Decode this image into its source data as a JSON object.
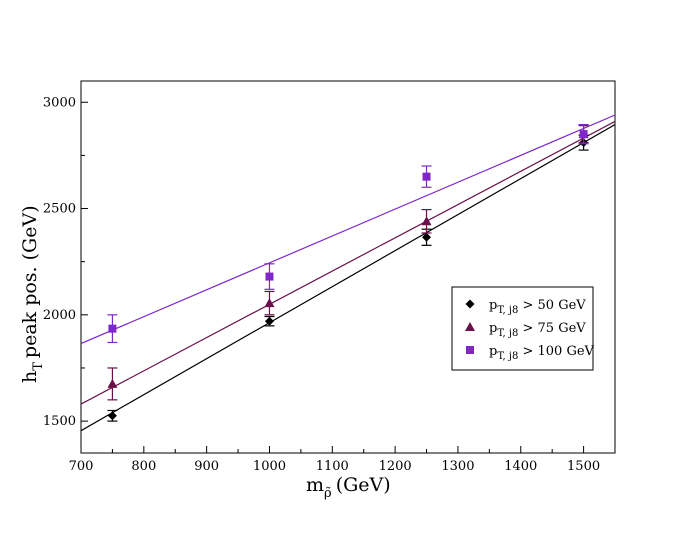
{
  "chart_data": {
    "type": "scatter",
    "title": "",
    "xlabel": "m",
    "xlabel_sub": "ρ̃",
    "xlabel_unit": "(GeV)",
    "ylabel": "h",
    "ylabel_sub": "T",
    "ylabel_rest": "peak pos. (GeV)",
    "xlim": [
      700,
      1550
    ],
    "ylim": [
      1350,
      3100
    ],
    "x_ticks": [
      700,
      800,
      900,
      1000,
      1100,
      1200,
      1300,
      1400,
      1500
    ],
    "y_ticks": [
      1500,
      2000,
      2500,
      3000
    ],
    "legend_position": "center-right",
    "series": [
      {
        "name": "p_T, j8 > 50 GeV",
        "label_main": "p",
        "label_sub": "T, j8",
        "label_rest": " > 50 GeV",
        "color": "#000000",
        "marker": "diamond",
        "x": [
          750,
          1000,
          1250,
          1500
        ],
        "y": [
          1525,
          1970,
          2365,
          2810
        ],
        "err": [
          25,
          22,
          38,
          35
        ],
        "fit": {
          "x": [
            700,
            1550
          ],
          "y": [
            1455,
            2895
          ]
        }
      },
      {
        "name": "p_T, j8 > 75 GeV",
        "label_main": "p",
        "label_sub": "T, j8",
        "label_rest": " > 75 GeV",
        "color": "#6b0f4a",
        "marker": "triangle",
        "x": [
          750,
          1000,
          1250,
          1500
        ],
        "y": [
          1675,
          2055,
          2440,
          2850
        ],
        "err": [
          75,
          55,
          55,
          40
        ],
        "fit": {
          "x": [
            700,
            1550
          ],
          "y": [
            1580,
            2910
          ]
        }
      },
      {
        "name": "p_T, j8 > 100 GeV",
        "label_main": "p",
        "label_sub": "T, j8",
        "label_rest": " > 100 GeV",
        "color": "#7f27c8",
        "marker": "square",
        "x": [
          750,
          1000,
          1250,
          1500
        ],
        "y": [
          1935,
          2180,
          2650,
          2850
        ],
        "err": [
          65,
          60,
          50,
          45
        ],
        "fit": {
          "x": [
            700,
            1550
          ],
          "y": [
            1865,
            2940
          ]
        }
      }
    ]
  }
}
